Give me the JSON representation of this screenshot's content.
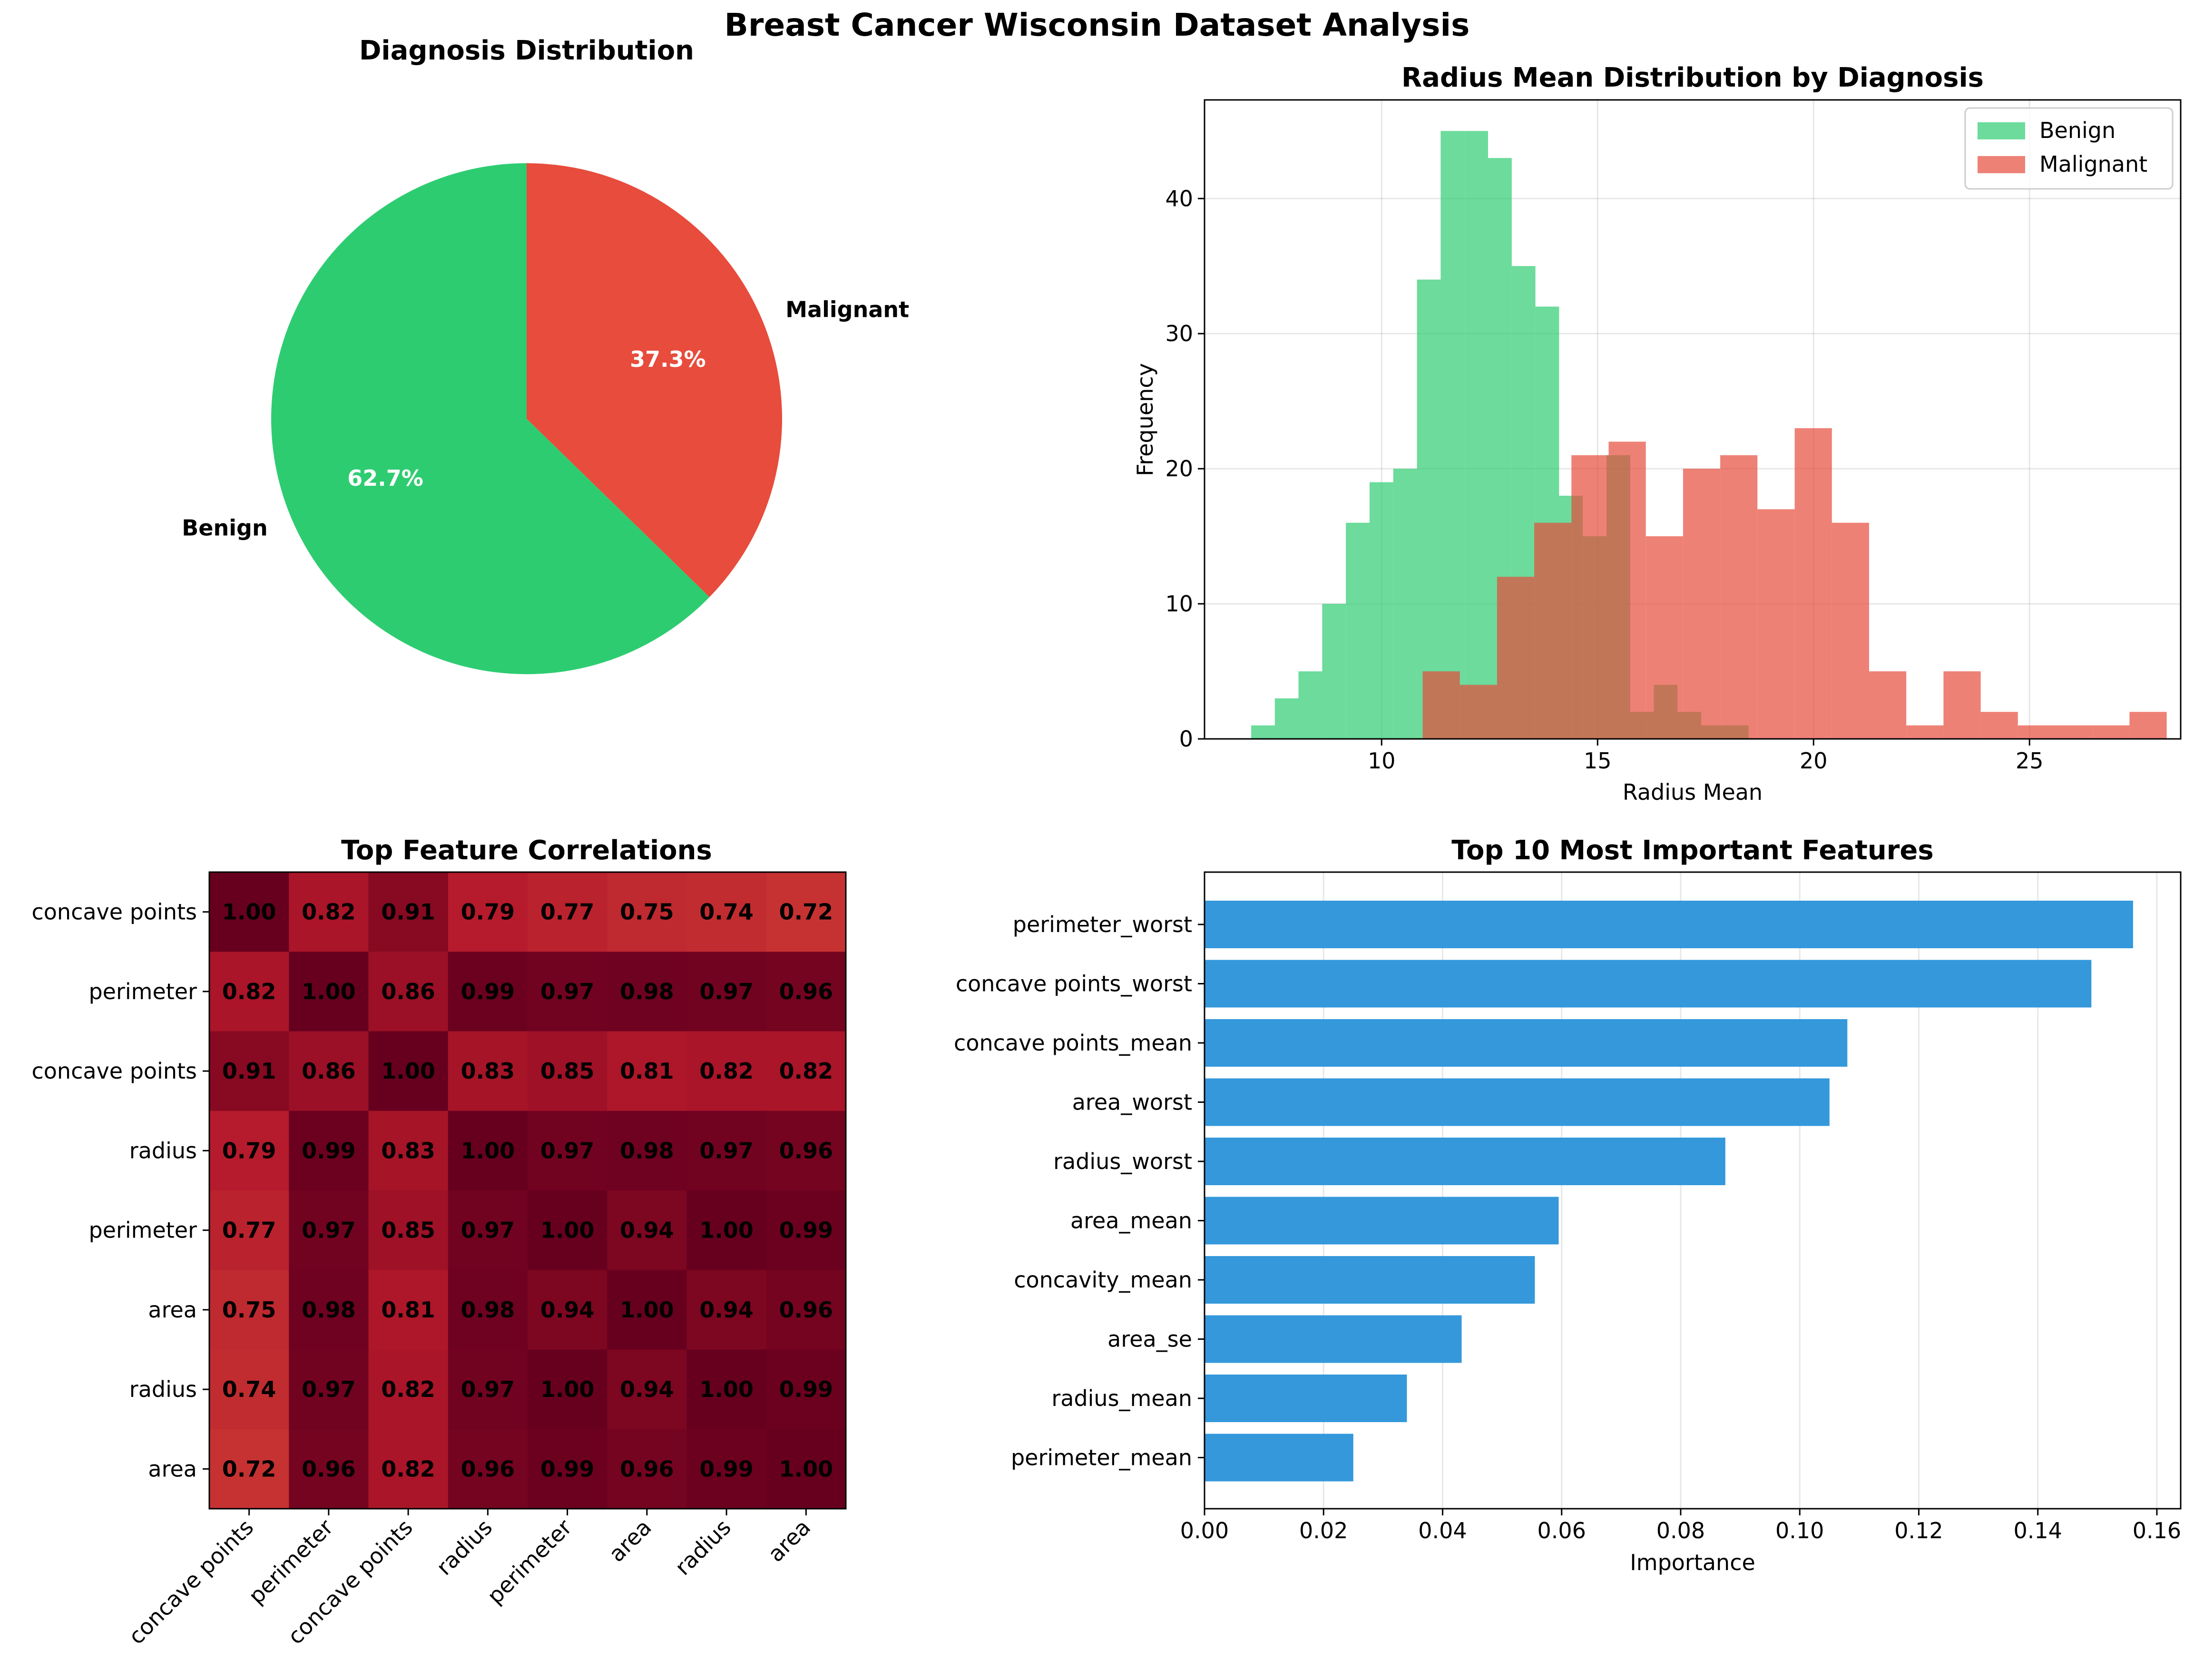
{
  "figure_title": "Breast Cancer Wisconsin Dataset Analysis",
  "colors": {
    "benign": "#2ecc71",
    "malignant": "#e74c3c",
    "importance_bar": "#3498db",
    "heatmap_high": "#67001f",
    "heatmap_low": "#f7f7f7"
  },
  "chart_data": [
    {
      "type": "pie",
      "title": "Diagnosis Distribution",
      "labels": [
        "Benign",
        "Malignant"
      ],
      "values": [
        62.7,
        37.3
      ],
      "pct_labels": [
        "62.7%",
        "37.3%"
      ]
    },
    {
      "type": "histogram",
      "title": "Radius Mean Distribution by Diagnosis",
      "xlabel": "Radius Mean",
      "ylabel": "Frequency",
      "xlim": [
        5.9,
        28.5
      ],
      "ylim": [
        0,
        47.3
      ],
      "xticks": [
        10,
        15,
        20,
        25
      ],
      "yticks": [
        0,
        10,
        20,
        30,
        40
      ],
      "grid": true,
      "legend_position": "top-right",
      "series": [
        {
          "name": "Benign",
          "bin_start": 6.98,
          "bin_width": 0.5484,
          "counts": [
            1,
            3,
            5,
            10,
            16,
            19,
            20,
            34,
            45,
            45,
            43,
            35,
            32,
            18,
            15,
            21,
            2,
            4,
            2,
            1,
            1
          ]
        },
        {
          "name": "Malignant",
          "bin_start": 10.95,
          "bin_width": 0.8613,
          "counts": [
            5,
            4,
            12,
            16,
            21,
            22,
            15,
            20,
            21,
            17,
            23,
            16,
            5,
            1,
            5,
            2,
            1,
            1,
            1,
            2
          ]
        }
      ]
    },
    {
      "type": "heatmap",
      "title": "Top Feature Correlations",
      "row_labels": [
        "concave points",
        "perimeter",
        "concave points",
        "radius",
        "perimeter",
        "area",
        "radius",
        "area"
      ],
      "col_labels": [
        "concave points",
        "perimeter",
        "concave points",
        "radius",
        "perimeter",
        "area",
        "radius",
        "area"
      ],
      "values": [
        [
          1.0,
          0.82,
          0.91,
          0.79,
          0.77,
          0.75,
          0.74,
          0.72
        ],
        [
          0.82,
          1.0,
          0.86,
          0.99,
          0.97,
          0.98,
          0.97,
          0.96
        ],
        [
          0.91,
          0.86,
          1.0,
          0.83,
          0.85,
          0.81,
          0.82,
          0.82
        ],
        [
          0.79,
          0.99,
          0.83,
          1.0,
          0.97,
          0.98,
          0.97,
          0.96
        ],
        [
          0.77,
          0.97,
          0.85,
          0.97,
          1.0,
          0.94,
          1.0,
          0.99
        ],
        [
          0.75,
          0.98,
          0.81,
          0.98,
          0.94,
          1.0,
          0.94,
          0.96
        ],
        [
          0.74,
          0.97,
          0.82,
          0.97,
          1.0,
          0.94,
          1.0,
          0.99
        ],
        [
          0.72,
          0.96,
          0.82,
          0.96,
          0.99,
          0.96,
          0.99,
          1.0
        ]
      ]
    },
    {
      "type": "bar",
      "orientation": "horizontal",
      "title": "Top 10 Most Important Features",
      "xlabel": "Importance",
      "xlim": [
        0,
        0.164
      ],
      "xticks": [
        "0.00",
        "0.02",
        "0.04",
        "0.06",
        "0.08",
        "0.10",
        "0.12",
        "0.14",
        "0.16"
      ],
      "grid": true,
      "categories": [
        "perimeter_worst",
        "concave points_worst",
        "concave points_mean",
        "area_worst",
        "radius_worst",
        "area_mean",
        "concavity_mean",
        "area_se",
        "radius_mean",
        "perimeter_mean"
      ],
      "values": [
        0.156,
        0.149,
        0.108,
        0.105,
        0.0875,
        0.0595,
        0.0555,
        0.0432,
        0.034,
        0.025
      ]
    }
  ]
}
